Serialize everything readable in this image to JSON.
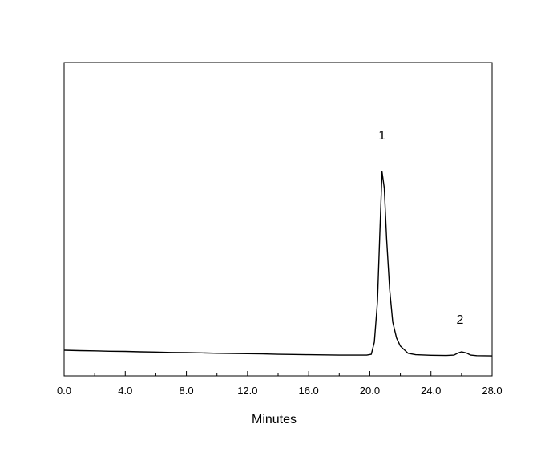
{
  "chart_data": {
    "type": "line",
    "title": "",
    "xlabel": "Minutes",
    "ylabel": "",
    "xlim": [
      0.0,
      28.0
    ],
    "ylim": [
      0.0,
      1.0
    ],
    "x_ticks": [
      "0.0",
      "4.0",
      "8.0",
      "12.0",
      "16.0",
      "20.0",
      "24.0",
      "28.0"
    ],
    "y_tick_labels_shown": false,
    "grid": false,
    "legend": "none",
    "annotations": [
      {
        "text": "1",
        "x": 20.8,
        "y": 1.04
      },
      {
        "text": "2",
        "x": 25.9,
        "y": 0.13
      }
    ],
    "series": [
      {
        "color": "#000000",
        "x": [
          0.0,
          1.0,
          2.0,
          3.0,
          4.0,
          5.0,
          6.0,
          7.0,
          8.0,
          9.0,
          10.0,
          11.0,
          12.0,
          13.0,
          14.0,
          15.0,
          16.0,
          17.0,
          18.0,
          19.0,
          19.8,
          20.1,
          20.3,
          20.5,
          20.65,
          20.8,
          20.95,
          21.1,
          21.3,
          21.5,
          21.75,
          22.0,
          22.5,
          23.0,
          24.0,
          25.0,
          25.5,
          25.8,
          26.0,
          26.3,
          26.6,
          27.0,
          28.0
        ],
        "y": [
          0.0,
          -0.002,
          -0.003,
          -0.005,
          -0.006,
          -0.008,
          -0.009,
          -0.011,
          -0.012,
          -0.013,
          -0.015,
          -0.016,
          -0.017,
          -0.018,
          -0.02,
          -0.021,
          -0.022,
          -0.023,
          -0.024,
          -0.024,
          -0.024,
          -0.02,
          0.04,
          0.24,
          0.56,
          0.88,
          0.8,
          0.55,
          0.3,
          0.14,
          0.06,
          0.02,
          -0.015,
          -0.022,
          -0.025,
          -0.026,
          -0.024,
          -0.013,
          -0.008,
          -0.013,
          -0.024,
          -0.027,
          -0.028
        ]
      }
    ]
  }
}
